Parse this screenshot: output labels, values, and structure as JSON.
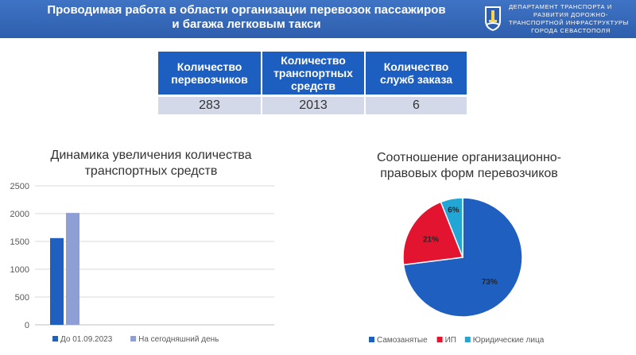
{
  "header": {
    "title_line1": "Проводимая работа в области организации перевозок пассажиров",
    "title_line2": "и багажа легковым такси",
    "dept_line1": "Департамент транспорта и",
    "dept_line2": "развития дорожно-",
    "dept_line3": "транспортной инфраструктуры",
    "dept_line4": "города Севастополя"
  },
  "stats_table": {
    "headers": [
      [
        "Количество",
        "перевозчиков"
      ],
      [
        "Количество",
        "транспортных",
        "средств"
      ],
      [
        "Количество",
        "служб заказа"
      ]
    ],
    "values": [
      "283",
      "2013",
      "6"
    ]
  },
  "bar_chart": {
    "title_line1": "Динамика увеличения количества",
    "title_line2": "транспортных средств"
  },
  "pie_chart": {
    "title_line1": "Соотношение организационно-",
    "title_line2": "правовых форм перевозчиков"
  },
  "chart_data": [
    {
      "type": "bar",
      "title": "Динамика увеличения количества транспортных средств",
      "categories": [
        ""
      ],
      "series": [
        {
          "name": "До 01.09.2023",
          "values": [
            1560
          ],
          "color": "#1f5fbf"
        },
        {
          "name": "На сегодняшний день",
          "values": [
            2013
          ],
          "color": "#8e9fd6"
        }
      ],
      "ylim": [
        0,
        2500
      ],
      "yticks": [
        "0",
        "500",
        "1000",
        "1500",
        "2000",
        "2500"
      ],
      "grid": true,
      "legend": "bottom"
    },
    {
      "type": "pie",
      "title": "Соотношение организационно-правовых форм перевозчиков",
      "slices": [
        {
          "name": "Самозанятые",
          "value": 73,
          "label": "73%",
          "color": "#1f5fbf"
        },
        {
          "name": "ИП",
          "value": 21,
          "label": "21%",
          "color": "#e3142f"
        },
        {
          "name": "Юридические лица",
          "value": 6,
          "label": "6%",
          "color": "#22a6d6"
        }
      ],
      "legend": "bottom"
    }
  ]
}
